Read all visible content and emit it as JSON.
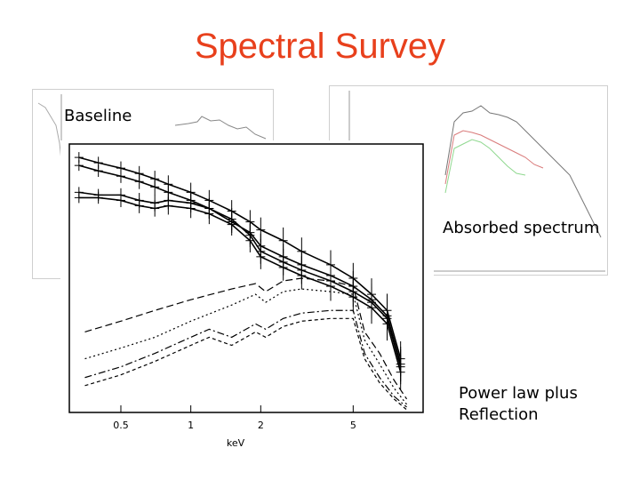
{
  "slide": {
    "title": "Spectral Survey",
    "labels": {
      "baseline": "Baseline",
      "absorbed": "Absorbed spectrum",
      "reflection_line1": "Power law plus",
      "reflection_line2": "Reflection"
    }
  },
  "chart_data": {
    "type": "scatter",
    "xlabel": "keV",
    "x_scale": "log",
    "xlim": [
      0.3,
      10
    ],
    "x_ticks": [
      "0.5",
      "1",
      "2",
      "5"
    ],
    "series": [
      {
        "x": [
          0.33,
          0.4,
          0.5,
          0.6,
          0.7,
          0.8,
          1.0,
          1.2,
          1.5,
          1.8,
          2.0,
          2.5,
          3.0,
          4.0,
          5.0,
          6.0,
          7.0,
          8.0
        ],
        "y": [
          0.95,
          0.93,
          0.91,
          0.89,
          0.87,
          0.85,
          0.82,
          0.79,
          0.75,
          0.71,
          0.68,
          0.64,
          0.6,
          0.55,
          0.5,
          0.44,
          0.38,
          0.2
        ]
      },
      {
        "x": [
          0.33,
          0.4,
          0.5,
          0.6,
          0.7,
          0.8,
          1.0,
          1.2,
          1.5,
          1.8,
          2.0,
          2.5,
          3.0,
          4.0,
          5.0,
          6.0,
          7.0,
          8.0
        ],
        "y": [
          0.92,
          0.9,
          0.88,
          0.86,
          0.84,
          0.82,
          0.79,
          0.76,
          0.71,
          0.67,
          0.62,
          0.58,
          0.55,
          0.51,
          0.47,
          0.42,
          0.36,
          0.18
        ]
      },
      {
        "x": [
          0.33,
          0.4,
          0.5,
          0.6,
          0.7,
          0.8,
          1.0,
          1.2,
          1.5,
          1.8,
          2.0,
          2.5,
          3.0,
          4.0,
          5.0,
          6.0,
          7.0,
          8.0
        ],
        "y": [
          0.82,
          0.81,
          0.81,
          0.79,
          0.78,
          0.79,
          0.78,
          0.76,
          0.72,
          0.66,
          0.6,
          0.56,
          0.53,
          0.49,
          0.45,
          0.41,
          0.35,
          0.17
        ]
      },
      {
        "x": [
          0.33,
          0.4,
          0.5,
          0.6,
          0.7,
          0.8,
          1.0,
          1.2,
          1.5,
          1.8,
          2.0,
          2.5,
          3.0,
          4.0,
          5.0,
          6.0,
          7.0,
          8.0
        ],
        "y": [
          0.8,
          0.8,
          0.79,
          0.77,
          0.76,
          0.77,
          0.76,
          0.74,
          0.7,
          0.64,
          0.58,
          0.54,
          0.51,
          0.47,
          0.43,
          0.39,
          0.33,
          0.15
        ]
      }
    ],
    "model_lines": [
      {
        "x": [
          0.35,
          0.5,
          0.7,
          1.0,
          1.5,
          1.9,
          2.1,
          2.5,
          3.0,
          4.0,
          5.0,
          5.6,
          6.5,
          7.5,
          8.5
        ],
        "y": [
          0.3,
          0.34,
          0.38,
          0.42,
          0.46,
          0.48,
          0.45,
          0.49,
          0.5,
          0.49,
          0.47,
          0.3,
          0.22,
          0.12,
          0.05
        ]
      },
      {
        "x": [
          0.35,
          0.5,
          0.7,
          1.0,
          1.5,
          1.9,
          2.1,
          2.5,
          3.0,
          4.0,
          5.0,
          5.6,
          6.5,
          7.5,
          8.5
        ],
        "y": [
          0.2,
          0.24,
          0.28,
          0.34,
          0.4,
          0.44,
          0.41,
          0.45,
          0.46,
          0.45,
          0.44,
          0.27,
          0.18,
          0.09,
          0.03
        ]
      },
      {
        "x": [
          0.35,
          0.5,
          0.7,
          1.0,
          1.2,
          1.5,
          1.9,
          2.1,
          2.5,
          3.0,
          4.0,
          5.0,
          5.6,
          6.5,
          7.5,
          8.5
        ],
        "y": [
          0.13,
          0.17,
          0.22,
          0.28,
          0.31,
          0.28,
          0.33,
          0.31,
          0.35,
          0.37,
          0.38,
          0.38,
          0.22,
          0.13,
          0.06,
          0.02
        ]
      },
      {
        "x": [
          0.35,
          0.5,
          0.7,
          1.0,
          1.2,
          1.5,
          1.9,
          2.1,
          2.5,
          3.0,
          4.0,
          5.0,
          5.6,
          6.5,
          7.5,
          8.5
        ],
        "y": [
          0.1,
          0.14,
          0.19,
          0.25,
          0.28,
          0.25,
          0.3,
          0.28,
          0.32,
          0.34,
          0.35,
          0.35,
          0.2,
          0.11,
          0.05,
          0.01
        ]
      }
    ],
    "colors": {
      "title": "#e8401c",
      "data": "#000000"
    }
  }
}
